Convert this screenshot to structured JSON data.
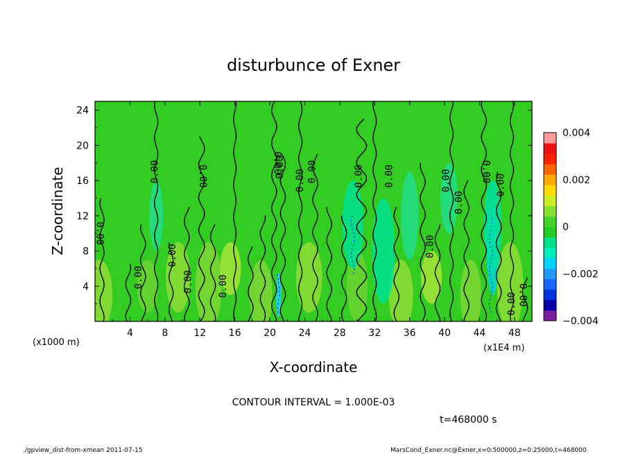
{
  "chart_data": {
    "type": "heatmap",
    "title": "disturbunce of Exner",
    "xlabel": "X-coordinate",
    "ylabel": "Z-coordinate",
    "x_unit_left": "(x1000 m)",
    "x_unit_right": "(x1E4 m)",
    "xlim": [
      0,
      50
    ],
    "ylim": [
      0,
      25
    ],
    "x_ticks": [
      "4",
      "8",
      "12",
      "16",
      "20",
      "24",
      "28",
      "32",
      "36",
      "40",
      "44",
      "48"
    ],
    "y_ticks": [
      "4",
      "8",
      "12",
      "16",
      "20",
      "24"
    ],
    "colorbar": {
      "range": [
        -0.004,
        0.004
      ],
      "tick_labels": [
        "0.004",
        "0.002",
        "0",
        "−0.002",
        "−0.004"
      ],
      "tick_values": [
        0.004,
        0.002,
        0,
        -0.002,
        -0.004
      ],
      "colors": [
        "#7b1fa2",
        "#0000aa",
        "#0033dd",
        "#1a66ff",
        "#2299ff",
        "#00d5ff",
        "#00eebb",
        "#00e08a",
        "#22cc22",
        "#44d426",
        "#88e030",
        "#ccee22",
        "#ffdd00",
        "#ffaa00",
        "#ff6600",
        "#ff2200",
        "#ee1111",
        "#ff9999"
      ]
    },
    "contour_labels": [
      "0.00",
      "0.00",
      "0.00",
      "0.00",
      "0.00",
      "0.00",
      "0.00",
      "0.00",
      "0.00",
      "0.00",
      "0.00",
      "0.00",
      "0.00",
      "0.00",
      "0.00",
      "0.00",
      "0.00",
      "0.00",
      "0.00",
      "0.00"
    ],
    "contour_interval_text": "CONTOUR INTERVAL = 1.000E-03",
    "time_text": "t=468000  s",
    "dominant_value": 0
  },
  "footer": {
    "left": "./gpview_dist-from-xmean  2011-07-15",
    "right": "MarsCond_Exner.nc@Exner,x=0:500000,z=0:25000,t=468000"
  }
}
